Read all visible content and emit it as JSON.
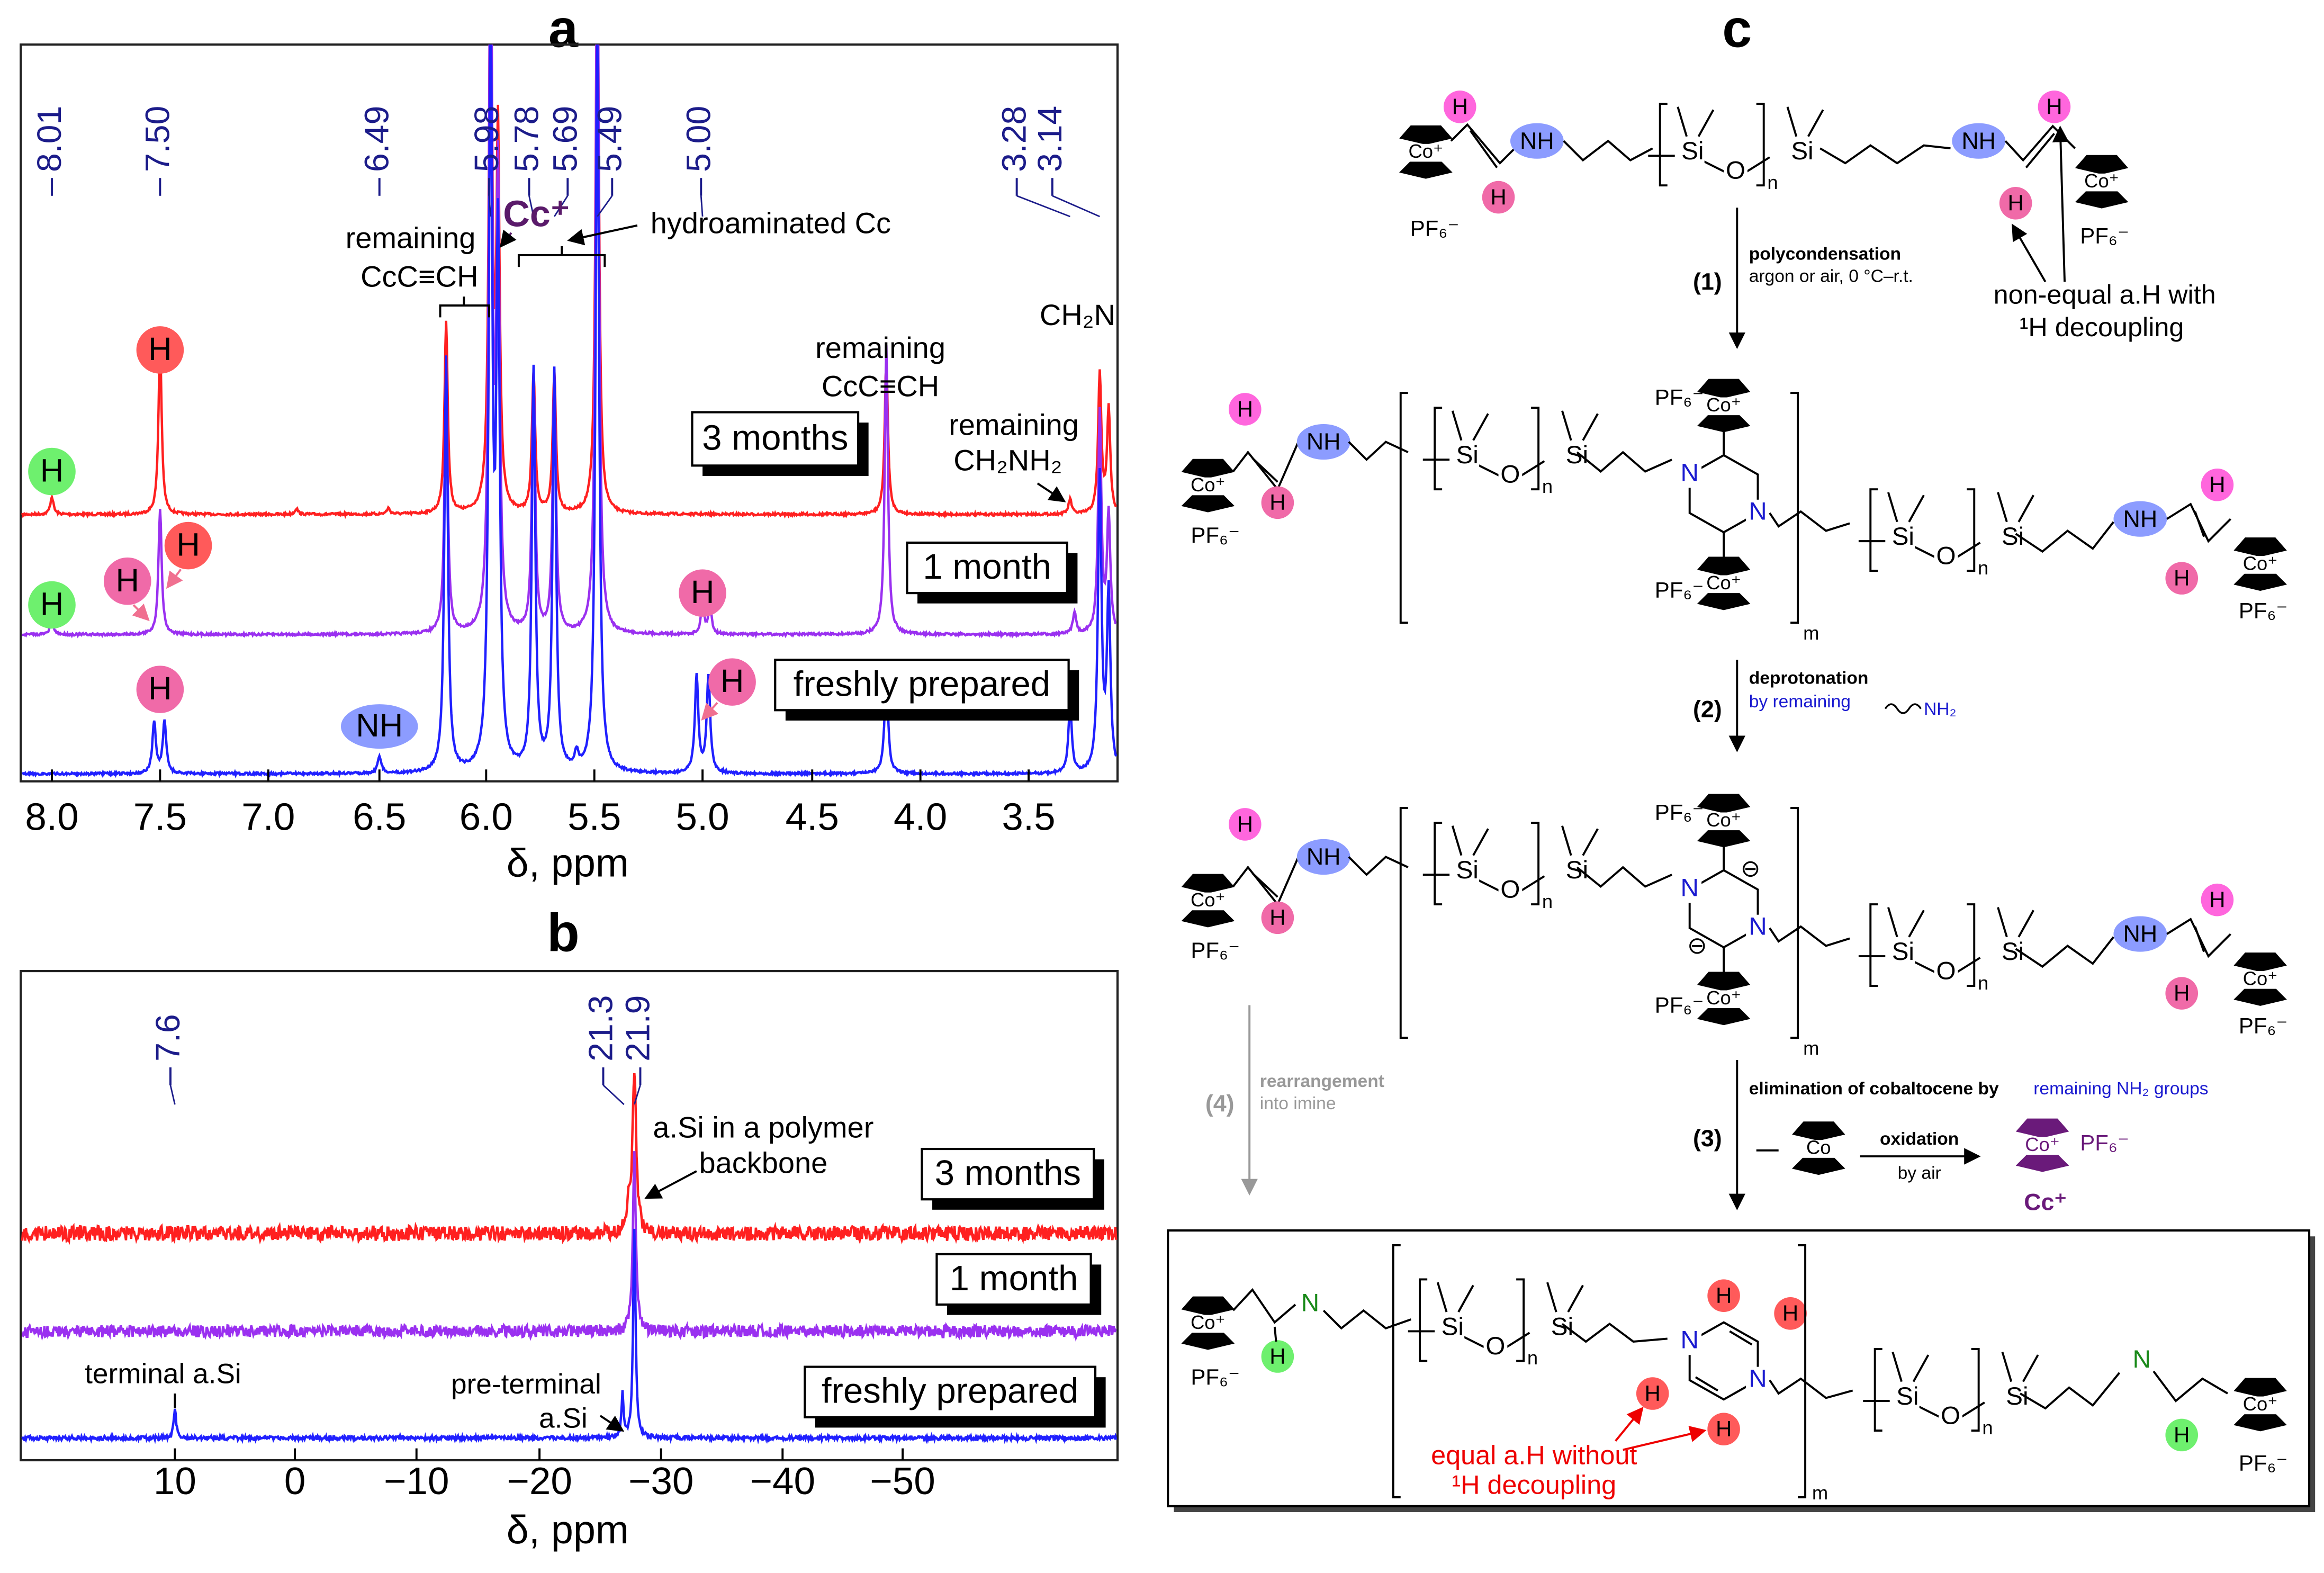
{
  "panel_a": {
    "label": "a",
    "peaks": [
      "8.01",
      "7.50",
      "6.49",
      "5.98",
      "5.78",
      "5.69",
      "5.49",
      "5.00",
      "3.28",
      "3.14"
    ],
    "xticks": [
      "8.0",
      "7.5",
      "7.0",
      "6.5",
      "6.0",
      "5.5",
      "5.0",
      "4.5",
      "4.0",
      "3.5"
    ],
    "xlabel": "δ, ppm",
    "traces": [
      "3 months",
      "1 month",
      "freshly prepared"
    ],
    "badges": {
      "h": "H",
      "nh": "NH"
    },
    "notes": {
      "remaining": "remaining",
      "alkyne_cc": "CcC≡CH",
      "cc_plus": "Cc⁺",
      "hydro": "hydroaminated Cc",
      "alkyne_h": "CcC≡CH",
      "amine": "CH₂NH₂",
      "ch2n": "CH₂N"
    }
  },
  "panel_b": {
    "label": "b",
    "peaks": [
      "7.6",
      "21.3",
      "21.9"
    ],
    "xticks": [
      "10",
      "0",
      "−10",
      "−20",
      "−30",
      "−40",
      "−50"
    ],
    "xlabel": "δ, ppm",
    "traces": [
      "3 months",
      "1 month",
      "freshly prepared"
    ],
    "notes": {
      "backbone1": "a.Si in a polymer",
      "backbone2": "backbone",
      "terminal": "terminal a.Si",
      "pre1": "pre-terminal",
      "pre2": "a.Si"
    }
  },
  "panel_c": {
    "label": "c",
    "atoms": {
      "si": "Si",
      "o": "O",
      "nh": "NH",
      "n": "N",
      "h": "H",
      "co_plus": "Co⁺",
      "co": "Co",
      "pf6": "PF₆⁻",
      "rep_n": "n",
      "rep_m": "m",
      "anion": "⊖"
    },
    "steps": [
      {
        "num": "(1)",
        "name": "polycondensation",
        "cond": "argon or air, 0 °C–r.t."
      },
      {
        "num": "(2)",
        "name": "deprotonation",
        "cond": "by remaining",
        "reagent": "NH₂"
      },
      {
        "num": "(3)",
        "name": "elimination of cobaltocene by",
        "cond": "remaining NH₂ groups"
      },
      {
        "num": "(4)",
        "name": "rearrangement",
        "cond": "into imine"
      }
    ],
    "oxidation": {
      "name": "oxidation",
      "cond": "by air",
      "product": "Cc⁺"
    },
    "notes": {
      "nonequal1": "non-equal a.H with",
      "nonequal2": "¹H decoupling",
      "equal1": "equal a.H without",
      "equal2": "¹H decoupling"
    }
  }
}
